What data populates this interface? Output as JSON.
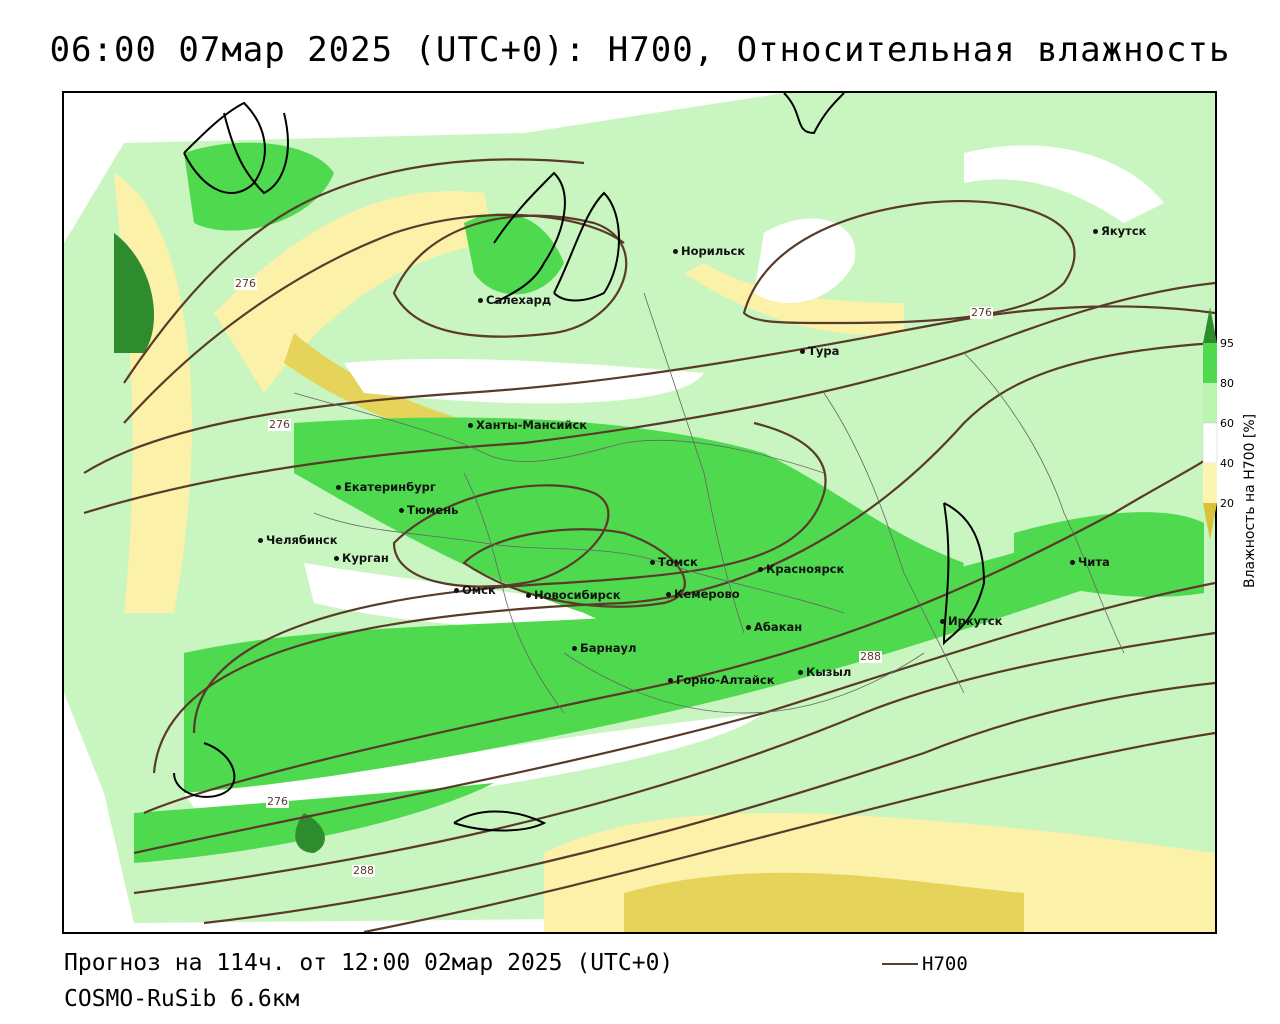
{
  "title": "06:00 07мар 2025 (UTC+0): H700, Относительная влажность",
  "footer": {
    "forecast": "Прогноз на 114ч. от 12:00 02мар 2025 (UTC+0)",
    "model": "COSMO-RuSib 6.6км"
  },
  "legend": {
    "line_label": "H700",
    "line_color": "#5a3a2a"
  },
  "colorbar": {
    "title": "Влажность на H700 [%]",
    "ticks": [
      "95",
      "80",
      "60",
      "40",
      "20"
    ],
    "colors": [
      "#2e8b2e",
      "#4fd94f",
      "#b9f5b0",
      "#ffffff",
      "#fdf4b0",
      "#d9c23a"
    ]
  },
  "contour_labels": [
    "276",
    "276",
    "276",
    "276",
    "288",
    "288"
  ],
  "cities": [
    "Якутск",
    "Норильск",
    "Салехард",
    "Тура",
    "Ханты-Мансийск",
    "Екатеринбург",
    "Тюмень",
    "Челябинск",
    "Курган",
    "Омск",
    "Новосибирск",
    "Томск",
    "Кемерово",
    "Красноярск",
    "Барнаул",
    "Абакан",
    "Горно-Алтайск",
    "Кызыл",
    "Иркутск",
    "Чита"
  ]
}
